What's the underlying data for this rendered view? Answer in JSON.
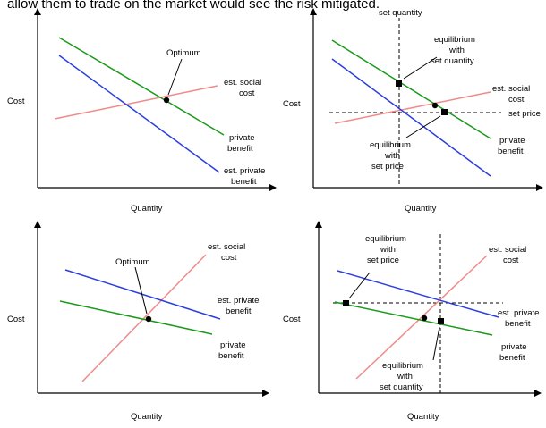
{
  "header_text": "allow them to trade on the market would see the risk mitigated.",
  "colors": {
    "social": "#f08a8a",
    "private_benefit": "#1a9a1a",
    "est_private_benefit": "#2b3fe0",
    "axis": "#000000"
  },
  "panels": [
    {
      "ylabel": "Cost",
      "xlabel": "Quantity",
      "labels": {
        "optimum": "Optimum",
        "social": [
          "est. social",
          "cost"
        ],
        "private_benefit": [
          "private",
          "benefit"
        ],
        "est_private_benefit": [
          "est. private",
          "benefit"
        ]
      }
    },
    {
      "ylabel": "Cost",
      "xlabel": "Quantity",
      "labels": {
        "set_quantity": "set quantity",
        "eq_quantity": [
          "equilibrium",
          "with",
          "set quantity"
        ],
        "social": [
          "est. social",
          "cost"
        ],
        "set_price": "set price",
        "private_benefit": [
          "private",
          "benefit"
        ],
        "eq_price": [
          "equilibrium",
          "with",
          "set price"
        ]
      }
    },
    {
      "ylabel": "Cost",
      "xlabel": "Quantity",
      "labels": {
        "optimum": "Optimum",
        "social": [
          "est. social",
          "cost"
        ],
        "est_private_benefit": [
          "est. private",
          "benefit"
        ],
        "private_benefit": [
          "private",
          "benefit"
        ]
      }
    },
    {
      "ylabel": "Cost",
      "xlabel": "Quantity",
      "labels": {
        "eq_price": [
          "equilibrium",
          "with",
          "set price"
        ],
        "social": [
          "est. social",
          "cost"
        ],
        "est_private_benefit": [
          "est. private",
          "benefit"
        ],
        "private_benefit": [
          "private",
          "benefit"
        ],
        "eq_quantity": [
          "equilibrium",
          "with",
          "set quantity"
        ]
      }
    }
  ]
}
